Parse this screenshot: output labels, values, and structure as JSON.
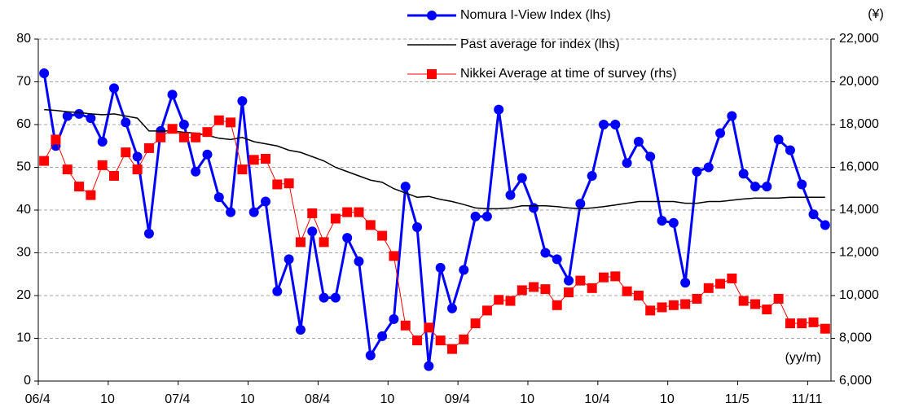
{
  "chart_data": {
    "type": "line",
    "categories": [
      "06/4",
      null,
      null,
      null,
      null,
      null,
      "10",
      null,
      null,
      null,
      null,
      null,
      "07/4",
      null,
      null,
      null,
      null,
      null,
      "10",
      null,
      null,
      null,
      null,
      null,
      "08/4",
      null,
      null,
      null,
      null,
      null,
      "10",
      null,
      null,
      null,
      null,
      null,
      "09/4",
      null,
      null,
      null,
      null,
      null,
      "10",
      null,
      null,
      null,
      null,
      null,
      "10/4",
      null,
      null,
      null,
      null,
      null,
      "10",
      null,
      null,
      null,
      null,
      null,
      "11/5",
      null,
      null,
      null,
      null,
      null,
      "11/11",
      null
    ],
    "series": [
      {
        "name": "Nomura I-View Index (lhs)",
        "color": "#0000ff",
        "marker": "circle",
        "width": 3,
        "values": [
          72,
          55,
          62,
          62.5,
          61.5,
          56,
          68.5,
          60.5,
          52.5,
          34.5,
          58.5,
          67,
          60,
          49,
          53,
          43,
          39.5,
          65.5,
          39.5,
          42,
          21,
          28.5,
          12,
          35,
          19.5,
          19.5,
          33.5,
          28,
          6,
          10.5,
          14.5,
          45.5,
          36,
          3.5,
          26.5,
          17,
          26,
          38.5,
          38.5,
          63.5,
          43.5,
          47.5,
          40.5,
          30,
          28.5,
          23.5,
          41.5,
          48,
          60,
          60,
          51,
          56,
          52.5,
          37.5,
          37,
          23,
          49,
          50,
          58,
          62,
          48.5,
          45.5,
          45.5,
          56.5,
          54,
          46,
          39,
          36.5
        ]
      },
      {
        "name": "Past average for index (lhs)",
        "color": "#000000",
        "width": 1.5,
        "values": [
          63.5,
          63.3,
          63,
          62.8,
          62.5,
          62.3,
          62.5,
          62,
          61.5,
          58.5,
          58.5,
          58.5,
          58.2,
          58,
          57.5,
          56.8,
          56.5,
          57,
          56,
          55.5,
          55,
          54,
          53.5,
          52.5,
          51.5,
          50,
          49,
          48,
          47,
          46.5,
          45,
          44,
          43,
          43.2,
          42.5,
          42,
          41.3,
          40.5,
          40.3,
          40.3,
          40.5,
          41,
          41,
          41,
          40.8,
          40.5,
          40.3,
          40.5,
          40.8,
          41.2,
          41.6,
          42,
          42,
          42,
          42,
          41.6,
          41.6,
          42,
          42,
          42.3,
          42.6,
          42.8,
          42.8,
          42.8,
          43,
          43,
          43,
          43
        ]
      },
      {
        "name": "Nikkei Average at time of survey (rhs)",
        "color": "#ff0000",
        "marker": "square",
        "width": 1,
        "axis": "y2",
        "values": [
          16300,
          17300,
          15900,
          15100,
          14700,
          16100,
          15600,
          16700,
          15900,
          16900,
          17400,
          17800,
          17400,
          17400,
          17650,
          18200,
          18100,
          15900,
          16350,
          16400,
          15200,
          15250,
          12500,
          13850,
          12500,
          13600,
          13900,
          13900,
          13300,
          12800,
          11850,
          8600,
          7900,
          8500,
          7900,
          7500,
          7950,
          8700,
          9300,
          9800,
          9750,
          10250,
          10400,
          10300,
          9550,
          10150,
          10700,
          10350,
          10850,
          10900,
          10200,
          10000,
          9300,
          9450,
          9550,
          9600,
          9850,
          10350,
          10550,
          10800,
          9750,
          9600,
          9350,
          9850,
          8700,
          8700,
          8750,
          8450
        ]
      }
    ],
    "ylim": [
      0,
      80
    ],
    "yticks": [
      0,
      10,
      20,
      30,
      40,
      50,
      60,
      70,
      80
    ],
    "y2lim": [
      6000,
      22000
    ],
    "y2ticks": [
      {
        "value": 6000,
        "label": "6,000"
      },
      {
        "value": 8000,
        "label": "8,000"
      },
      {
        "value": 10000,
        "label": "10,000"
      },
      {
        "value": 12000,
        "label": "12,000"
      },
      {
        "value": 14000,
        "label": "14,000"
      },
      {
        "value": 16000,
        "label": "16,000"
      },
      {
        "value": 18000,
        "label": "18,000"
      },
      {
        "value": 20000,
        "label": "20,000"
      },
      {
        "value": 22000,
        "label": "22,000"
      }
    ],
    "y2_unit": "(¥)",
    "x_unit": "(yy/m)",
    "grid": true,
    "legend": "top"
  }
}
